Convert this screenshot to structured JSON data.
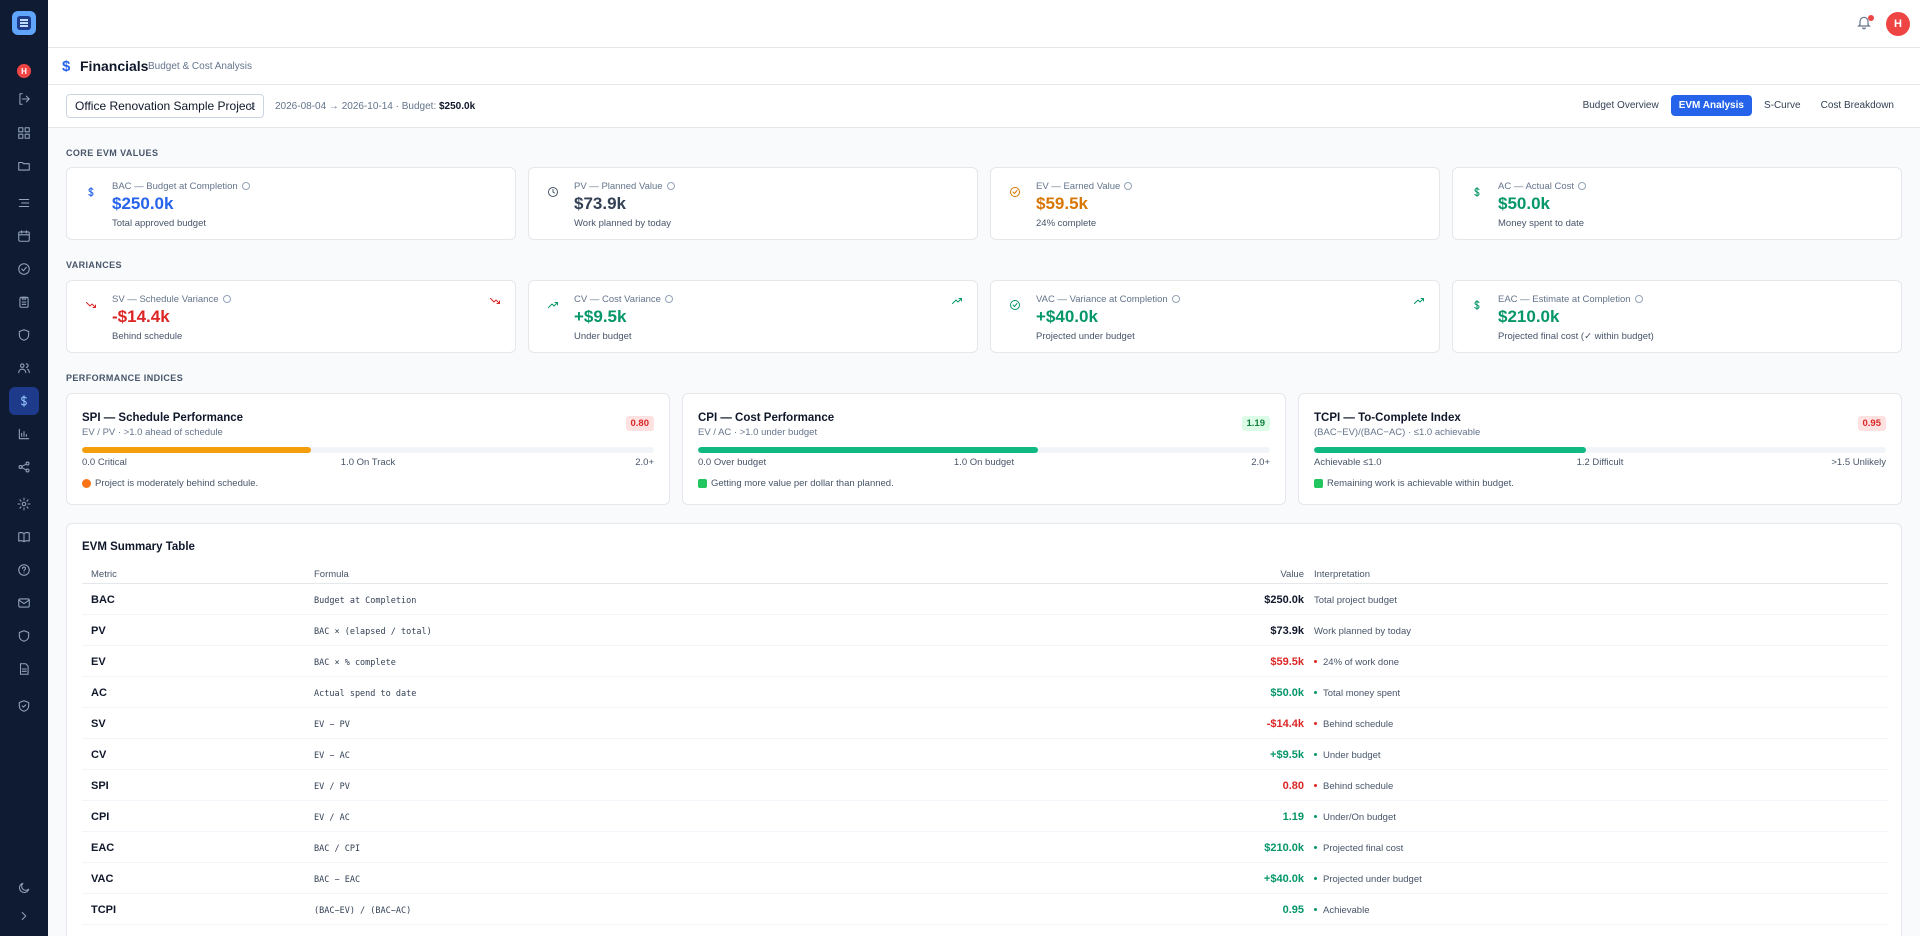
{
  "app": {
    "user_initial": "H"
  },
  "page": {
    "title": "Financials",
    "subtitle": "Budget & Cost Analysis"
  },
  "toolbar": {
    "project": "Office Renovation Sample Project",
    "dates": "2026-08-04 → 2026-10-14 · Budget: ",
    "budget": "$250.0k",
    "tabs": [
      {
        "label": "Budget Overview",
        "active": false
      },
      {
        "label": "EVM Analysis",
        "active": true
      },
      {
        "label": "S-Curve",
        "active": false
      },
      {
        "label": "Cost Breakdown",
        "active": false
      }
    ]
  },
  "sections": {
    "core": "CORE EVM VALUES",
    "variances": "VARIANCES",
    "performance": "PERFORMANCE INDICES"
  },
  "core": [
    {
      "label": "BAC — Budget at Completion",
      "value": "$250.0k",
      "desc": "Total approved budget",
      "icon": "dollar-icon"
    },
    {
      "label": "PV — Planned Value",
      "value": "$73.9k",
      "desc": "Work planned by today",
      "icon": "clock-icon"
    },
    {
      "label": "EV — Earned Value",
      "value": "$59.5k",
      "desc": "24% complete",
      "icon": "check-circle-icon"
    },
    {
      "label": "AC — Actual Cost",
      "value": "$50.0k",
      "desc": "Money spent to date",
      "icon": "dollar-icon"
    }
  ],
  "variances": [
    {
      "label": "SV — Schedule Variance",
      "value": "-$14.4k",
      "desc": "Behind schedule",
      "icon": "trend-down-icon"
    },
    {
      "label": "CV — Cost Variance",
      "value": "+$9.5k",
      "desc": "Under budget",
      "icon": "trend-up-icon"
    },
    {
      "label": "VAC — Variance at Completion",
      "value": "+$40.0k",
      "desc": "Projected under budget",
      "icon": "check-circle-icon"
    },
    {
      "label": "EAC — Estimate at Completion",
      "value": "$210.0k",
      "desc": "Projected final cost (✓ within budget)",
      "icon": "dollar-icon"
    }
  ],
  "performance": [
    {
      "title": "SPI — Schedule Performance",
      "sub": "EV / PV · >1.0 ahead of schedule",
      "badge": "0.80",
      "fill_fraction": 0.4,
      "scale": [
        "0.0 Critical",
        "1.0 On Track",
        "2.0+"
      ],
      "note": "Project is moderately behind schedule."
    },
    {
      "title": "CPI — Cost Performance",
      "sub": "EV / AC · >1.0 under budget",
      "badge": "1.19",
      "fill_fraction": 0.595,
      "scale": [
        "0.0 Over budget",
        "1.0 On budget",
        "2.0+"
      ],
      "note": "Getting more value per dollar than planned."
    },
    {
      "title": "TCPI — To-Complete Index",
      "sub": "(BAC−EV)/(BAC−AC) · ≤1.0 achievable",
      "badge": "0.95",
      "fill_fraction": 0.475,
      "scale": [
        "Achievable ≤1.0",
        "1.2 Difficult",
        ">1.5 Unlikely"
      ],
      "note": "Remaining work is achievable within budget."
    }
  ],
  "table": {
    "title": "EVM Summary Table",
    "headers": [
      "Metric",
      "Formula",
      "Value",
      "Interpretation"
    ],
    "rows": [
      {
        "metric": "BAC",
        "formula": "Budget at Completion",
        "value": "$250.0k",
        "interp": "Total project budget",
        "color": "#0f172a",
        "dot": ""
      },
      {
        "metric": "PV",
        "formula": "BAC × (elapsed / total)",
        "value": "$73.9k",
        "interp": "Work planned by today",
        "color": "#0f172a",
        "dot": ""
      },
      {
        "metric": "EV",
        "formula": "BAC × % complete",
        "value": "$59.5k",
        "interp": "24% of work done",
        "color": "#dc2626",
        "dot": "#dc2626"
      },
      {
        "metric": "AC",
        "formula": "Actual spend to date",
        "value": "$50.0k",
        "interp": "Total money spent",
        "color": "#059669",
        "dot": "#059669"
      },
      {
        "metric": "SV",
        "formula": "EV − PV",
        "value": "-$14.4k",
        "interp": "Behind schedule",
        "color": "#dc2626",
        "dot": "#dc2626"
      },
      {
        "metric": "CV",
        "formula": "EV − AC",
        "value": "+$9.5k",
        "interp": "Under budget",
        "color": "#059669",
        "dot": "#059669"
      },
      {
        "metric": "SPI",
        "formula": "EV / PV",
        "value": "0.80",
        "interp": "Behind schedule",
        "color": "#dc2626",
        "dot": "#dc2626"
      },
      {
        "metric": "CPI",
        "formula": "EV / AC",
        "value": "1.19",
        "interp": "Under/On budget",
        "color": "#059669",
        "dot": "#059669"
      },
      {
        "metric": "EAC",
        "formula": "BAC / CPI",
        "value": "$210.0k",
        "interp": "Projected final cost",
        "color": "#059669",
        "dot": "#059669"
      },
      {
        "metric": "VAC",
        "formula": "BAC − EAC",
        "value": "+$40.0k",
        "interp": "Projected under budget",
        "color": "#059669",
        "dot": "#059669"
      },
      {
        "metric": "TCPI",
        "formula": "(BAC−EV) / (BAC−AC)",
        "value": "0.95",
        "interp": "Achievable",
        "color": "#059669",
        "dot": "#059669"
      }
    ]
  }
}
